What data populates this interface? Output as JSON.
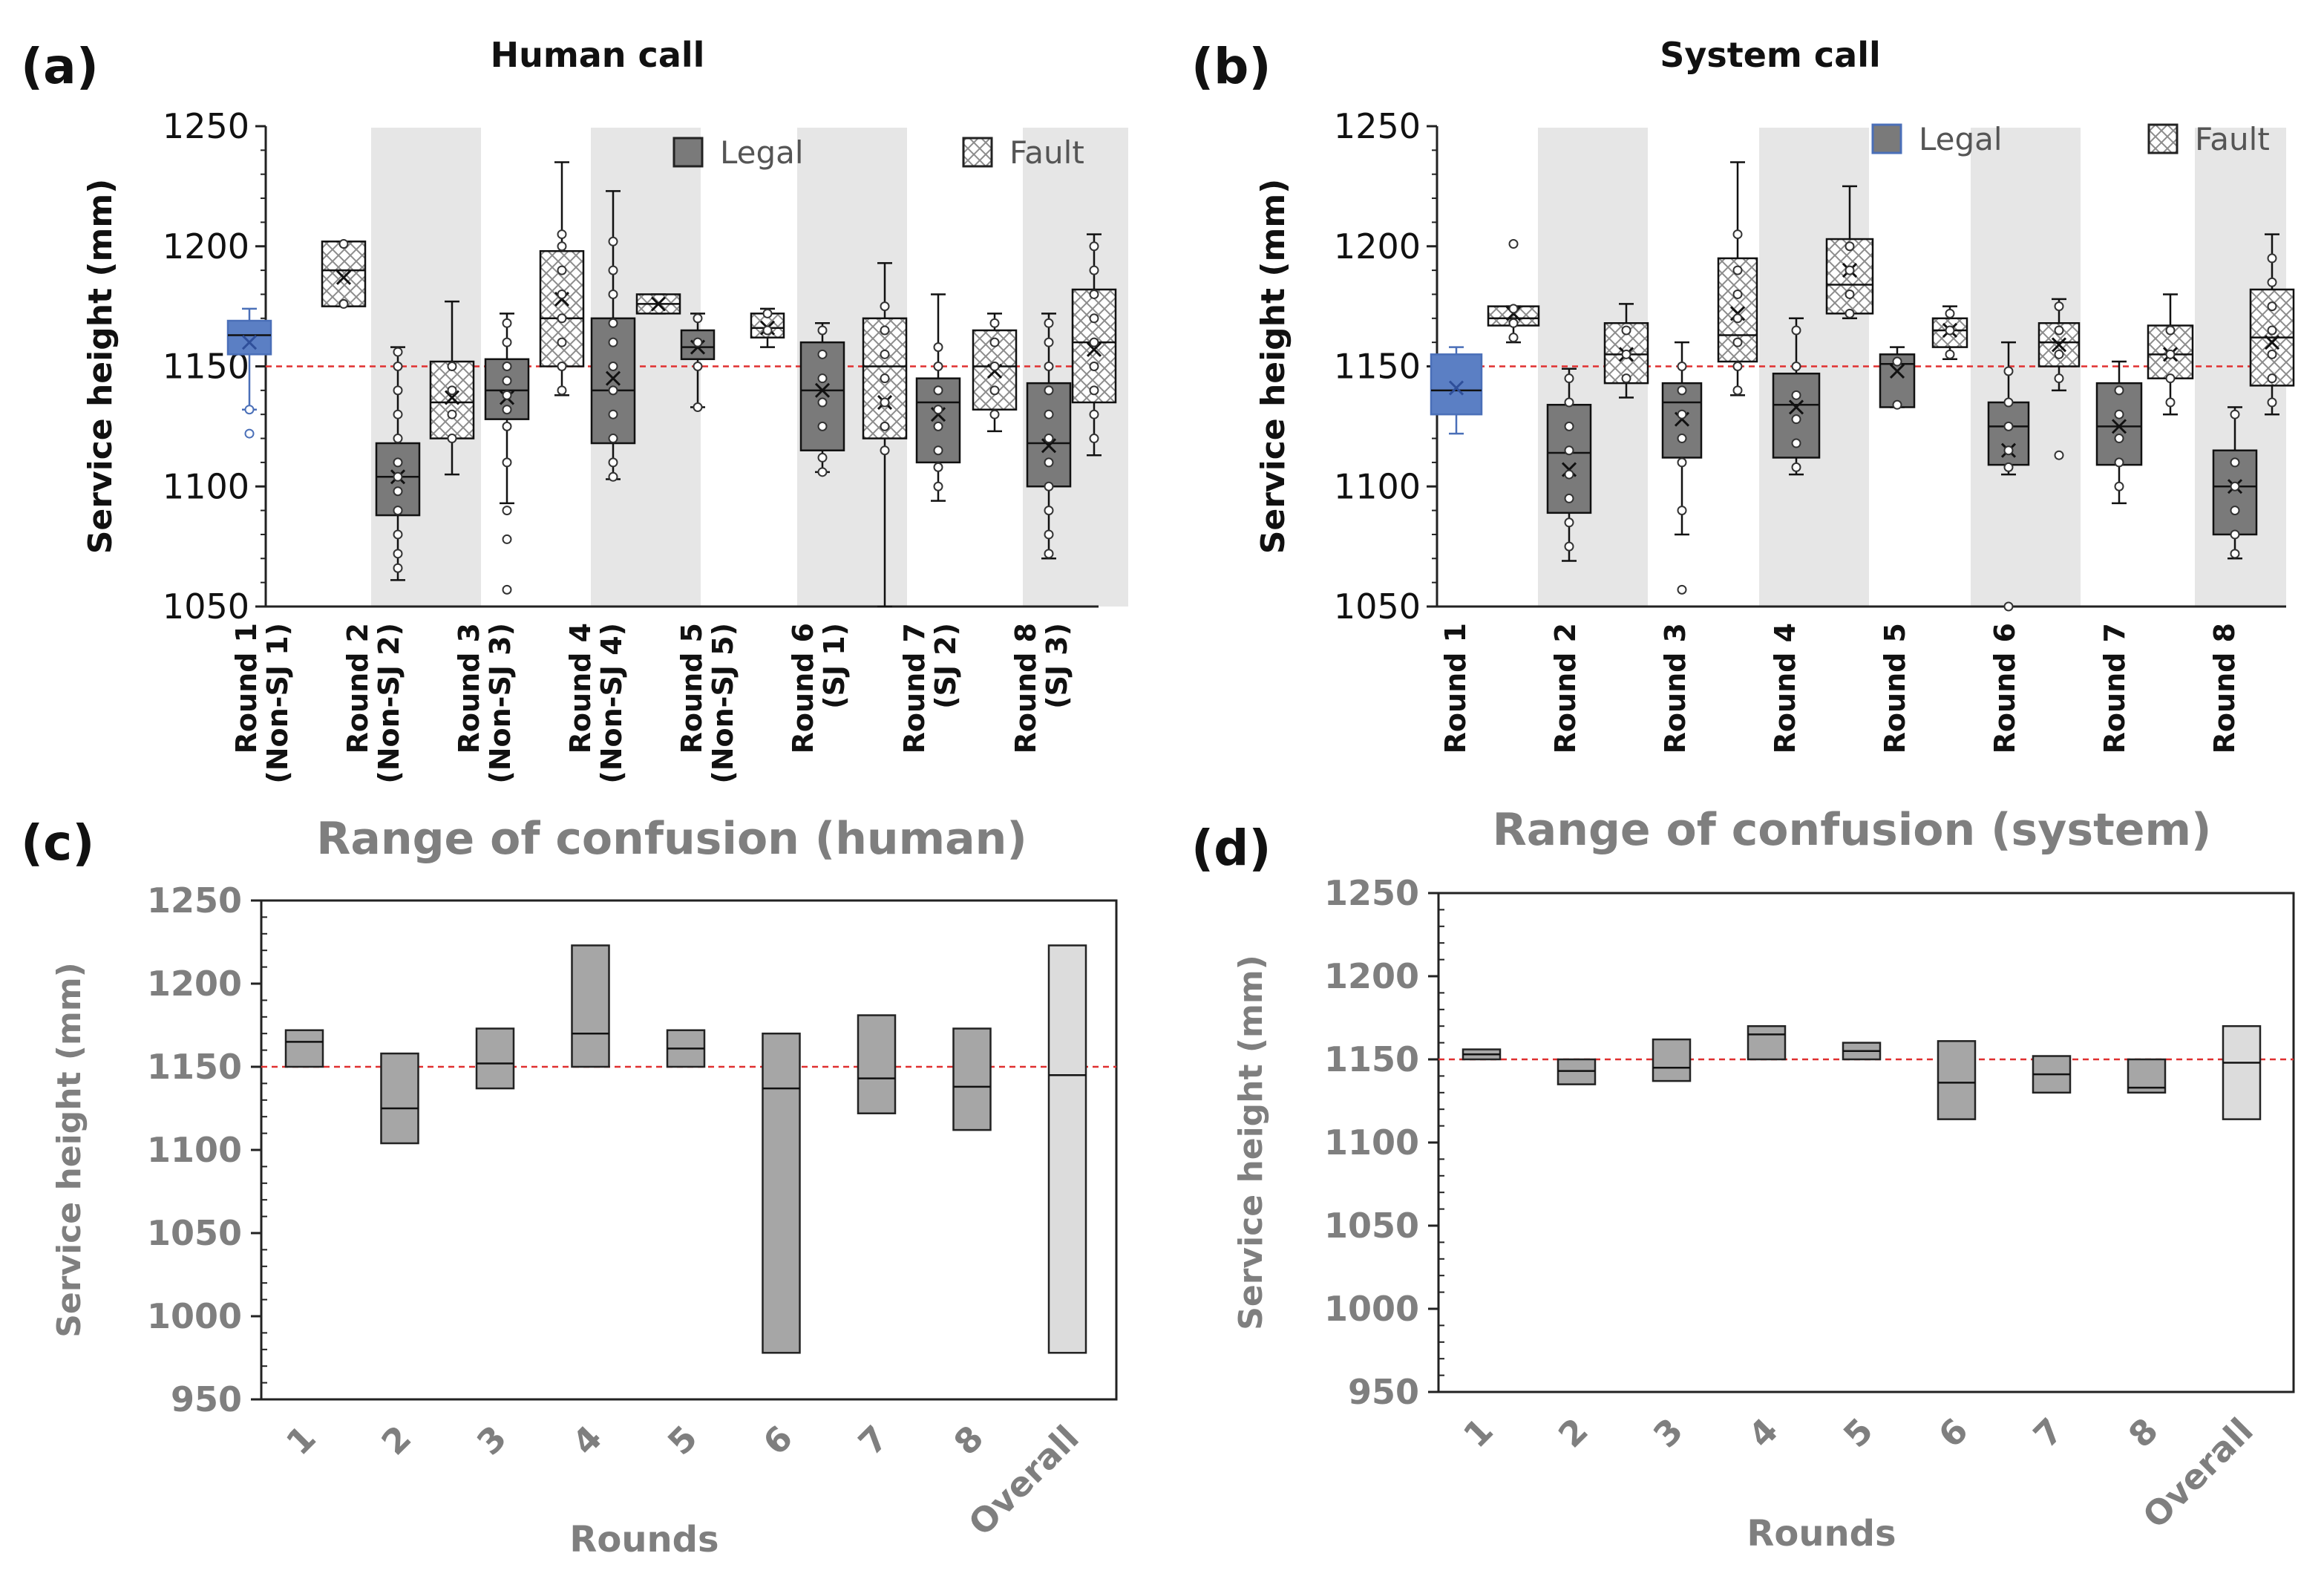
{
  "reference_line": {
    "value": 1150,
    "color": "#e03030"
  },
  "colors": {
    "legal_fill": "#7a7a7a",
    "fault_fill": "#ffffff",
    "band": "#e6e6e6",
    "round1_fill": "#5b7fc4",
    "range_fill": "#a6a6a6",
    "overall_fill": "#dcdcdc",
    "title_gray": "#7f7f7f"
  },
  "panels": [
    {
      "letter": "(a)",
      "title": "Human call",
      "ylabel": "Service height (mm)",
      "ylim": [
        1050,
        1250
      ],
      "yticks": [
        "1050",
        "1100",
        "1150",
        "1200",
        "1250"
      ],
      "legend": [
        "Legal",
        "Fault"
      ],
      "xlabels": [
        [
          "Round 1",
          "(Non-SJ 1)"
        ],
        [
          "Round 2",
          "(Non-SJ 2)"
        ],
        [
          "Round 3",
          "(Non-SJ 3)"
        ],
        [
          "Round 4",
          "(Non-SJ 4)"
        ],
        [
          "Round 5",
          "(Non-SJ 5)"
        ],
        [
          "Round 6",
          "(SJ 1)"
        ],
        [
          "Round 7",
          "(SJ 2)"
        ],
        [
          "Round 8",
          "(SJ 3)"
        ]
      ]
    },
    {
      "letter": "(b)",
      "title": "System call",
      "ylabel": "Service height (mm)",
      "ylim": [
        1050,
        1250
      ],
      "yticks": [
        "1050",
        "1100",
        "1150",
        "1200",
        "1250"
      ],
      "legend": [
        "Legal",
        "Fault"
      ],
      "xlabels": [
        [
          "Round 1"
        ],
        [
          "Round 2"
        ],
        [
          "Round 3"
        ],
        [
          "Round 4"
        ],
        [
          "Round 5"
        ],
        [
          "Round 6"
        ],
        [
          "Round 7"
        ],
        [
          "Round 8"
        ]
      ]
    },
    {
      "letter": "(c)",
      "title": "Range of confusion (human)",
      "ylabel": "Service height (mm)",
      "xlabel": "Rounds",
      "ylim": [
        950,
        1250
      ],
      "yticks": [
        "950",
        "1000",
        "1050",
        "1100",
        "1150",
        "1200",
        "1250"
      ],
      "xlabels": [
        "1",
        "2",
        "3",
        "4",
        "5",
        "6",
        "7",
        "8",
        "Overall"
      ]
    },
    {
      "letter": "(d)",
      "title": "Range of confusion (system)",
      "ylabel": "Service height (mm)",
      "xlabel": "Rounds",
      "ylim": [
        950,
        1250
      ],
      "yticks": [
        "950",
        "1000",
        "1050",
        "1100",
        "1150",
        "1200",
        "1250"
      ],
      "xlabels": [
        "1",
        "2",
        "3",
        "4",
        "5",
        "6",
        "7",
        "8",
        "Overall"
      ]
    }
  ],
  "chart_data": [
    {
      "type": "box",
      "panel": "a",
      "categories": [
        "Round 1",
        "Round 2",
        "Round 3",
        "Round 4",
        "Round 5",
        "Round 6",
        "Round 7",
        "Round 8"
      ],
      "series": [
        {
          "name": "Legal",
          "boxes": [
            {
              "min": 1132,
              "q1": 1155,
              "median": 1163,
              "q3": 1169,
              "max": 1174,
              "mean": 1160,
              "points": [
                1122,
                1132
              ]
            },
            {
              "min": 1061,
              "q1": 1088,
              "median": 1104,
              "q3": 1118,
              "max": 1158,
              "mean": 1104,
              "points": [
                1066,
                1072,
                1080,
                1090,
                1098,
                1104,
                1110,
                1120,
                1130,
                1140,
                1150,
                1156
              ]
            },
            {
              "min": 1093,
              "q1": 1128,
              "median": 1140,
              "q3": 1153,
              "max": 1172,
              "mean": 1137,
              "points": [
                1057,
                1078,
                1090,
                1110,
                1125,
                1132,
                1138,
                1144,
                1150,
                1160,
                1168
              ]
            },
            {
              "min": 1103,
              "q1": 1118,
              "median": 1140,
              "q3": 1170,
              "max": 1223,
              "mean": 1145,
              "points": [
                1104,
                1110,
                1120,
                1130,
                1140,
                1150,
                1160,
                1168,
                1180,
                1190,
                1202
              ]
            },
            {
              "min": 1133,
              "q1": 1153,
              "median": 1158,
              "q3": 1165,
              "max": 1172,
              "mean": 1158,
              "points": [
                1133,
                1150,
                1160,
                1170
              ]
            },
            {
              "min": 1106,
              "q1": 1115,
              "median": 1140,
              "q3": 1160,
              "max": 1168,
              "mean": 1140,
              "points": [
                1106,
                1112,
                1125,
                1135,
                1145,
                1155,
                1165
              ]
            },
            {
              "min": 1094,
              "q1": 1110,
              "median": 1135,
              "q3": 1145,
              "max": 1180,
              "mean": 1130,
              "points": [
                1100,
                1108,
                1115,
                1125,
                1132,
                1140,
                1150,
                1158
              ]
            },
            {
              "min": 1070,
              "q1": 1100,
              "median": 1118,
              "q3": 1143,
              "max": 1172,
              "mean": 1117,
              "points": [
                1072,
                1080,
                1090,
                1100,
                1110,
                1120,
                1130,
                1140,
                1150,
                1160,
                1168
              ]
            }
          ]
        },
        {
          "name": "Fault",
          "boxes": [
            {
              "min": 1175,
              "q1": 1175,
              "median": 1190,
              "q3": 1202,
              "max": 1202,
              "mean": 1187,
              "points": [
                1176,
                1201
              ]
            },
            {
              "min": 1105,
              "q1": 1120,
              "median": 1135,
              "q3": 1152,
              "max": 1177,
              "mean": 1137,
              "points": [
                1120,
                1130,
                1140,
                1150
              ]
            },
            {
              "min": 1138,
              "q1": 1150,
              "median": 1170,
              "q3": 1198,
              "max": 1235,
              "mean": 1178,
              "points": [
                1140,
                1150,
                1160,
                1170,
                1180,
                1190,
                1200,
                1205
              ]
            },
            {
              "min": 1172,
              "q1": 1172,
              "median": 1176,
              "q3": 1180,
              "max": 1180,
              "mean": 1176,
              "points": []
            },
            {
              "min": 1158,
              "q1": 1162,
              "median": 1166,
              "q3": 1172,
              "max": 1174,
              "mean": 1166,
              "points": [
                1165,
                1172
              ]
            },
            {
              "min": 1050,
              "q1": 1120,
              "median": 1150,
              "q3": 1170,
              "max": 1193,
              "mean": 1135,
              "points": [
                1115,
                1125,
                1135,
                1145,
                1155,
                1165,
                1175
              ]
            },
            {
              "min": 1123,
              "q1": 1132,
              "median": 1150,
              "q3": 1165,
              "max": 1172,
              "mean": 1148,
              "points": [
                1130,
                1140,
                1150,
                1160,
                1168
              ]
            },
            {
              "min": 1113,
              "q1": 1135,
              "median": 1160,
              "q3": 1182,
              "max": 1205,
              "mean": 1157,
              "points": [
                1120,
                1130,
                1140,
                1150,
                1160,
                1170,
                1180,
                1190,
                1200
              ]
            }
          ]
        }
      ],
      "ylabel": "Service height (mm)",
      "title": "Human call",
      "ylim": [
        1050,
        1250
      ]
    },
    {
      "type": "box",
      "panel": "b",
      "categories": [
        "Round 1",
        "Round 2",
        "Round 3",
        "Round 4",
        "Round 5",
        "Round 6",
        "Round 7",
        "Round 8"
      ],
      "series": [
        {
          "name": "Legal",
          "boxes": [
            {
              "min": 1122,
              "q1": 1130,
              "median": 1140,
              "q3": 1155,
              "max": 1158,
              "mean": 1141,
              "points": []
            },
            {
              "min": 1069,
              "q1": 1089,
              "median": 1114,
              "q3": 1134,
              "max": 1149,
              "mean": 1107,
              "points": [
                1075,
                1085,
                1095,
                1105,
                1115,
                1125,
                1135,
                1145
              ]
            },
            {
              "min": 1080,
              "q1": 1112,
              "median": 1135,
              "q3": 1143,
              "max": 1160,
              "mean": 1128,
              "points": [
                1057,
                1090,
                1110,
                1120,
                1130,
                1140,
                1150
              ]
            },
            {
              "min": 1105,
              "q1": 1112,
              "median": 1134,
              "q3": 1147,
              "max": 1170,
              "mean": 1133,
              "points": [
                1108,
                1118,
                1128,
                1138,
                1150,
                1165
              ]
            },
            {
              "min": 1133,
              "q1": 1133,
              "median": 1151,
              "q3": 1155,
              "max": 1158,
              "mean": 1148,
              "points": [
                1134,
                1152
              ]
            },
            {
              "min": 1105,
              "q1": 1109,
              "median": 1125,
              "q3": 1135,
              "max": 1160,
              "mean": 1115,
              "points": [
                1050,
                1108,
                1115,
                1125,
                1135,
                1148
              ]
            },
            {
              "min": 1093,
              "q1": 1109,
              "median": 1125,
              "q3": 1143,
              "max": 1152,
              "mean": 1125,
              "points": [
                1100,
                1110,
                1120,
                1130,
                1140
              ]
            },
            {
              "min": 1070,
              "q1": 1080,
              "median": 1100,
              "q3": 1115,
              "max": 1133,
              "mean": 1100,
              "points": [
                1072,
                1080,
                1090,
                1100,
                1110,
                1130
              ]
            }
          ]
        },
        {
          "name": "Fault",
          "boxes": [
            {
              "min": 1160,
              "q1": 1167,
              "median": 1170,
              "q3": 1175,
              "max": 1175,
              "mean": 1172,
              "points": [
                1162,
                1168,
                1174,
                1201
              ]
            },
            {
              "min": 1137,
              "q1": 1143,
              "median": 1155,
              "q3": 1168,
              "max": 1176,
              "mean": 1155,
              "points": [
                1145,
                1155,
                1165
              ]
            },
            {
              "min": 1138,
              "q1": 1152,
              "median": 1163,
              "q3": 1195,
              "max": 1235,
              "mean": 1172,
              "points": [
                1140,
                1150,
                1160,
                1170,
                1180,
                1190,
                1205
              ]
            },
            {
              "min": 1170,
              "q1": 1172,
              "median": 1184,
              "q3": 1203,
              "max": 1225,
              "mean": 1190,
              "points": [
                1172,
                1180,
                1190,
                1200
              ]
            },
            {
              "min": 1153,
              "q1": 1158,
              "median": 1165,
              "q3": 1170,
              "max": 1175,
              "mean": 1165,
              "points": [
                1155,
                1165,
                1172
              ]
            },
            {
              "min": 1140,
              "q1": 1150,
              "median": 1160,
              "q3": 1168,
              "max": 1178,
              "mean": 1159,
              "points": [
                1113,
                1145,
                1155,
                1165,
                1175
              ]
            },
            {
              "min": 1130,
              "q1": 1145,
              "median": 1155,
              "q3": 1167,
              "max": 1180,
              "mean": 1155,
              "points": [
                1135,
                1145,
                1155,
                1165
              ]
            },
            {
              "min": 1130,
              "q1": 1142,
              "median": 1162,
              "q3": 1182,
              "max": 1205,
              "mean": 1160,
              "points": [
                1135,
                1145,
                1155,
                1165,
                1175,
                1185,
                1195
              ]
            }
          ]
        }
      ],
      "ylabel": "Service height (mm)",
      "title": "System call",
      "ylim": [
        1050,
        1250
      ]
    },
    {
      "type": "floating-bar",
      "panel": "c",
      "categories": [
        "1",
        "2",
        "3",
        "4",
        "5",
        "6",
        "7",
        "8",
        "Overall"
      ],
      "bars": [
        {
          "low": 1150,
          "high": 1172,
          "mid": 1165
        },
        {
          "low": 1104,
          "high": 1158,
          "mid": 1125
        },
        {
          "low": 1137,
          "high": 1173,
          "mid": 1152
        },
        {
          "low": 1150,
          "high": 1223,
          "mid": 1170
        },
        {
          "low": 1150,
          "high": 1172,
          "mid": 1161
        },
        {
          "low": 978,
          "high": 1170,
          "mid": 1137
        },
        {
          "low": 1122,
          "high": 1181,
          "mid": 1143
        },
        {
          "low": 1112,
          "high": 1173,
          "mid": 1138
        },
        {
          "low": 978,
          "high": 1223,
          "mid": 1145
        }
      ],
      "title": "Range of confusion (human)",
      "xlabel": "Rounds",
      "ylabel": "Service height (mm)",
      "ylim": [
        950,
        1250
      ]
    },
    {
      "type": "floating-bar",
      "panel": "d",
      "categories": [
        "1",
        "2",
        "3",
        "4",
        "5",
        "6",
        "7",
        "8",
        "Overall"
      ],
      "bars": [
        {
          "low": 1150,
          "high": 1156,
          "mid": 1153
        },
        {
          "low": 1135,
          "high": 1150,
          "mid": 1143
        },
        {
          "low": 1137,
          "high": 1162,
          "mid": 1145
        },
        {
          "low": 1150,
          "high": 1170,
          "mid": 1165
        },
        {
          "low": 1150,
          "high": 1160,
          "mid": 1155
        },
        {
          "low": 1114,
          "high": 1161,
          "mid": 1136
        },
        {
          "low": 1130,
          "high": 1152,
          "mid": 1141
        },
        {
          "low": 1130,
          "high": 1150,
          "mid": 1133
        },
        {
          "low": 1114,
          "high": 1170,
          "mid": 1148
        }
      ],
      "title": "Range of confusion (system)",
      "xlabel": "Rounds",
      "ylabel": "Service height (mm)",
      "ylim": [
        950,
        1250
      ]
    }
  ]
}
